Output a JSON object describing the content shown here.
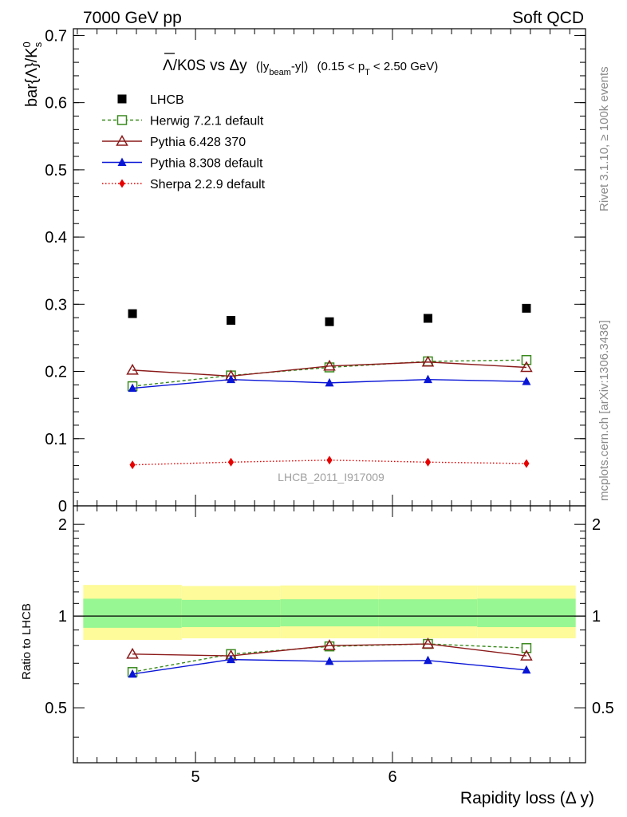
{
  "header": {
    "left": "7000 GeV pp",
    "right": "Soft QCD"
  },
  "side_labels": {
    "rivet": "Rivet 3.1.10, ≥ 100k events",
    "mcplots": "mcplots.cern.ch [arXiv:1306.3436]"
  },
  "chart_data": [
    {
      "type": "scatter",
      "title_parts": {
        "main": "Λ/K0S vs Δy",
        "ybeam_open": "(|y",
        "ybeam_sub": "beam",
        "ybeam_close": "-y|)",
        "pt_open": "(0.15 < p",
        "pt_sub": "T",
        "pt_close": "< 2.50 GeV)"
      },
      "ylabel_parts": {
        "main": "bar{Λ}/K",
        "sup": "0",
        "sub": "s"
      },
      "watermark": "LHCB_2011_I917009",
      "x": [
        4.68,
        5.18,
        5.68,
        6.18,
        6.68
      ],
      "xlim": [
        4.38,
        6.98
      ],
      "ylim": [
        0,
        0.71
      ],
      "yticks": [
        0,
        0.1,
        0.2,
        0.3,
        0.4,
        0.5,
        0.6,
        0.7
      ],
      "ytick_labels": [
        "0",
        "0.1",
        "0.2",
        "0.3",
        "0.4",
        "0.5",
        "0.6",
        "0.7"
      ],
      "legend_position": "top-left",
      "series": [
        {
          "name": "LHCB",
          "color": "#000000",
          "marker": "square-filled",
          "line": "none",
          "values": [
            0.286,
            0.276,
            0.274,
            0.279,
            0.294
          ]
        },
        {
          "name": "Herwig 7.2.1 default",
          "color": "#3a8a1e",
          "marker": "square-open",
          "line": "dashed",
          "values": [
            0.178,
            0.194,
            0.206,
            0.215,
            0.217
          ]
        },
        {
          "name": "Pythia 6.428 370",
          "color": "#8b1a1a",
          "marker": "triangle-open",
          "line": "solid",
          "values": [
            0.202,
            0.193,
            0.208,
            0.214,
            0.206
          ]
        },
        {
          "name": "Pythia 8.308 default",
          "color": "#0a16d6",
          "marker": "triangle-filled",
          "line": "solid",
          "values": [
            0.175,
            0.188,
            0.183,
            0.188,
            0.185
          ]
        },
        {
          "name": "Sherpa 2.2.9 default",
          "color": "#e60000",
          "marker": "diamond-filled",
          "line": "dotted",
          "values": [
            0.061,
            0.065,
            0.068,
            0.065,
            0.063
          ]
        }
      ]
    },
    {
      "type": "line",
      "ylabel": "Ratio to LHCB",
      "xlabel": "Rapidity loss (Δ y)",
      "x": [
        4.68,
        5.18,
        5.68,
        6.18,
        6.68
      ],
      "xlim": [
        4.38,
        6.98
      ],
      "xticks": [
        5,
        6
      ],
      "xtick_labels": [
        "5",
        "6"
      ],
      "ylim": [
        0.33,
        2.3
      ],
      "yticks": [
        0.5,
        1,
        2
      ],
      "ytick_labels": [
        "0.5",
        "1",
        "2"
      ],
      "reference": 1,
      "bands": {
        "edges": [
          4.43,
          4.93,
          5.43,
          5.93,
          6.43,
          6.93
        ],
        "yellow_low": [
          0.835,
          0.845,
          0.845,
          0.845,
          0.845
        ],
        "yellow_high": [
          1.265,
          1.255,
          1.26,
          1.26,
          1.26
        ],
        "green_low": [
          0.915,
          0.92,
          0.925,
          0.925,
          0.92
        ],
        "green_high": [
          1.14,
          1.13,
          1.135,
          1.135,
          1.14
        ]
      },
      "series": [
        {
          "name": "Herwig 7.2.1 default",
          "color": "#3a8a1e",
          "marker": "square-open",
          "line": "dashed",
          "values": [
            0.655,
            0.75,
            0.795,
            0.81,
            0.785
          ]
        },
        {
          "name": "Pythia 6.428 370",
          "color": "#8b1a1a",
          "marker": "triangle-open",
          "line": "solid",
          "values": [
            0.75,
            0.74,
            0.8,
            0.81,
            0.74
          ]
        },
        {
          "name": "Pythia 8.308 default",
          "color": "#0a16d6",
          "marker": "triangle-filled",
          "line": "solid",
          "values": [
            0.645,
            0.72,
            0.71,
            0.715,
            0.665
          ]
        }
      ]
    }
  ]
}
